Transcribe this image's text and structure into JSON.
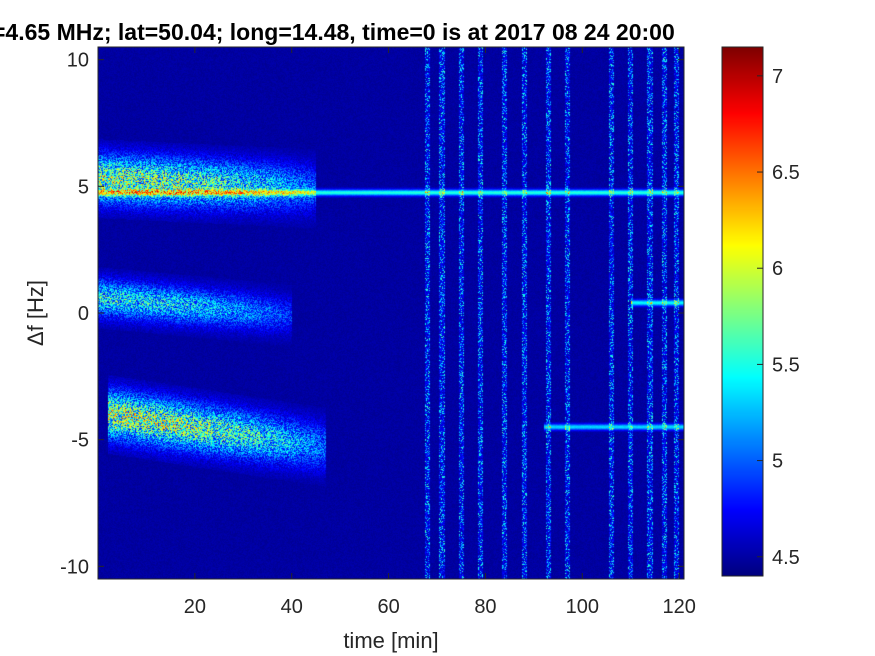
{
  "chart_data": {
    "type": "heatmap",
    "title": "=4.65 MHz;  lat=50.04; long=14.48, time=0 is at 2017 08 24 20:00",
    "xlabel": "time [min]",
    "ylabel": "Δf [Hz]",
    "xlim": [
      0,
      121
    ],
    "ylim": [
      -10.5,
      10.5
    ],
    "xticks": [
      20,
      40,
      60,
      80,
      100,
      120
    ],
    "yticks": [
      -10,
      -5,
      0,
      5,
      10
    ],
    "colorbar": {
      "colormap": "jet",
      "range": [
        4.4,
        7.15
      ],
      "ticks": [
        4.5,
        5,
        5.5,
        6,
        6.5,
        7
      ]
    },
    "background_level": 4.45,
    "features": [
      {
        "name": "carrier line",
        "freq": 4.75,
        "t_start": 0,
        "t_end": 121,
        "level": 5.5
      },
      {
        "name": "upper sideband echo",
        "freq_start": 5.3,
        "freq_end": 4.9,
        "width": 0.9,
        "t_start": 0,
        "t_end": 45,
        "level": 6.0
      },
      {
        "name": "middle echo",
        "freq_start": 0.6,
        "freq_end": -0.1,
        "width": 0.7,
        "t_start": 0,
        "t_end": 40,
        "level": 5.6
      },
      {
        "name": "lower echo",
        "freq_start": -4.0,
        "freq_end": -5.3,
        "width": 0.9,
        "t_start": 2,
        "t_end": 47,
        "level": 6.1
      },
      {
        "name": "late middle echo",
        "freq": 0.4,
        "t_start": 110,
        "t_end": 121,
        "level": 5.4
      },
      {
        "name": "late lower echo",
        "freq": -4.5,
        "t_start": 92,
        "t_end": 121,
        "level": 5.3
      }
    ],
    "noise_stripes_min": [
      68,
      71,
      75,
      79,
      84,
      88,
      93,
      97,
      106,
      110,
      114,
      117,
      119.5
    ]
  },
  "colors": {
    "background": "#ffffff",
    "axis": "#262626"
  }
}
